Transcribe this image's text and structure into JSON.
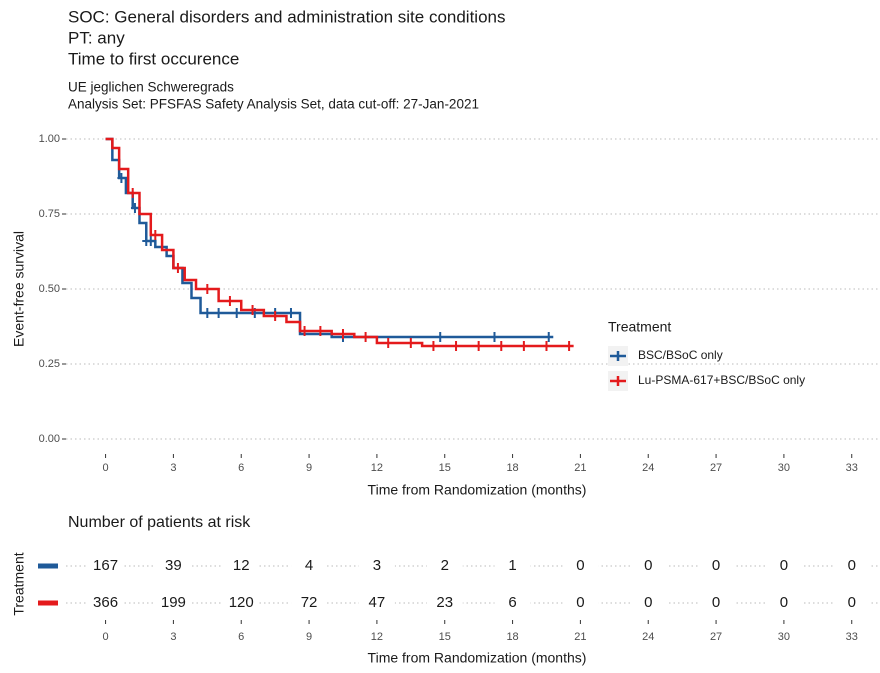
{
  "chart_data": {
    "type": "km",
    "title": [
      "SOC: General disorders and administration site conditions",
      "PT: any",
      "Time to first occurence"
    ],
    "subtitle": [
      "UE jeglichen Schweregrads",
      "Analysis Set: PFSFAS Safety Analysis Set, data cut-off: 27-Jan-2021"
    ],
    "x_label": "Time from Randomization (months)",
    "y_label": "Event-free survival",
    "xlim": [
      -1.75,
      34.25
    ],
    "ylim": [
      -0.05,
      1.05
    ],
    "xticks": [
      0,
      3,
      6,
      9,
      12,
      15,
      18,
      21,
      24,
      27,
      30,
      33
    ],
    "yticks": [
      {
        "value": 0,
        "label": "0.00"
      },
      {
        "value": 0.25,
        "label": "0.25"
      },
      {
        "value": 0.5,
        "label": "0.50"
      },
      {
        "value": 0.75,
        "label": "0.75"
      },
      {
        "value": 1,
        "label": "1.00"
      }
    ],
    "grid": true,
    "legend_title": "Treatment",
    "legend": "right",
    "series": [
      {
        "name": "BSC/BSoC only",
        "color": "#1f5a99",
        "x": [
          0,
          0.3,
          0.6,
          0.9,
          1.2,
          1.5,
          1.8,
          2.2,
          2.7,
          3.0,
          3.4,
          3.8,
          4.2,
          8.6,
          10,
          19.8
        ],
        "values": [
          1.0,
          0.93,
          0.87,
          0.82,
          0.77,
          0.72,
          0.66,
          0.64,
          0.61,
          0.57,
          0.52,
          0.47,
          0.42,
          0.35,
          0.34,
          0.34
        ],
        "censored_x": [
          0.7,
          1.3,
          1.8,
          2.0,
          4.5,
          5.0,
          5.8,
          6.6,
          7.5,
          8.2,
          10.5,
          14.8,
          17.2,
          19.6
        ],
        "censored_values": [
          0.87,
          0.77,
          0.66,
          0.66,
          0.42,
          0.42,
          0.42,
          0.42,
          0.42,
          0.42,
          0.34,
          0.34,
          0.34,
          0.34
        ]
      },
      {
        "name": "Lu-PSMA-617+BSC/BSoC only",
        "color": "#e41a1c",
        "x": [
          0,
          0.3,
          0.6,
          1.0,
          1.5,
          2.0,
          2.5,
          3.0,
          3.5,
          4.0,
          5.0,
          6.0,
          7.0,
          8.0,
          8.6,
          10,
          11,
          12,
          14,
          20.7
        ],
        "values": [
          1.0,
          0.97,
          0.9,
          0.82,
          0.75,
          0.68,
          0.63,
          0.57,
          0.53,
          0.5,
          0.46,
          0.43,
          0.41,
          0.39,
          0.36,
          0.35,
          0.34,
          0.32,
          0.31,
          0.31
        ],
        "censored_x": [
          1.2,
          2.2,
          3.2,
          4.5,
          5.5,
          6.5,
          7.5,
          8.8,
          9.5,
          10.5,
          11.5,
          12.5,
          13.5,
          14.5,
          15.5,
          16.5,
          17.5,
          18.5,
          19.5,
          20.5
        ],
        "censored_values": [
          0.82,
          0.68,
          0.57,
          0.5,
          0.46,
          0.43,
          0.41,
          0.36,
          0.36,
          0.35,
          0.34,
          0.32,
          0.32,
          0.31,
          0.31,
          0.31,
          0.31,
          0.31,
          0.31,
          0.31
        ]
      }
    ],
    "risk_table": {
      "title": "Number of patients at risk",
      "y_label": "Treatment",
      "rows": [
        {
          "color": "#1f5a99",
          "values": [
            167,
            39,
            12,
            4,
            3,
            2,
            1,
            0,
            0,
            0,
            0,
            0
          ]
        },
        {
          "color": "#e41a1c",
          "values": [
            366,
            199,
            120,
            72,
            47,
            23,
            6,
            0,
            0,
            0,
            0,
            0
          ]
        }
      ]
    }
  }
}
